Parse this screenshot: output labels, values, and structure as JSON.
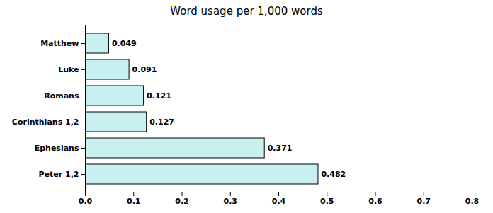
{
  "chart_data": {
    "type": "bar",
    "title": "Word usage per 1,000 words",
    "orientation": "horizontal",
    "categories": [
      "Matthew",
      "Luke",
      "Romans",
      "Corinthians 1,2",
      "Ephesians",
      "Peter 1,2"
    ],
    "values": [
      0.049,
      0.091,
      0.121,
      0.127,
      0.371,
      0.482
    ],
    "color": "#c8f0f0",
    "xlim": [
      0.0,
      0.8
    ],
    "xticks": [
      {
        "value": 0,
        "label": "0.0"
      },
      0.1,
      0.2,
      0.3,
      0.4,
      0.5,
      0.6,
      0.7,
      0.8
    ],
    "data_labels": true
  }
}
